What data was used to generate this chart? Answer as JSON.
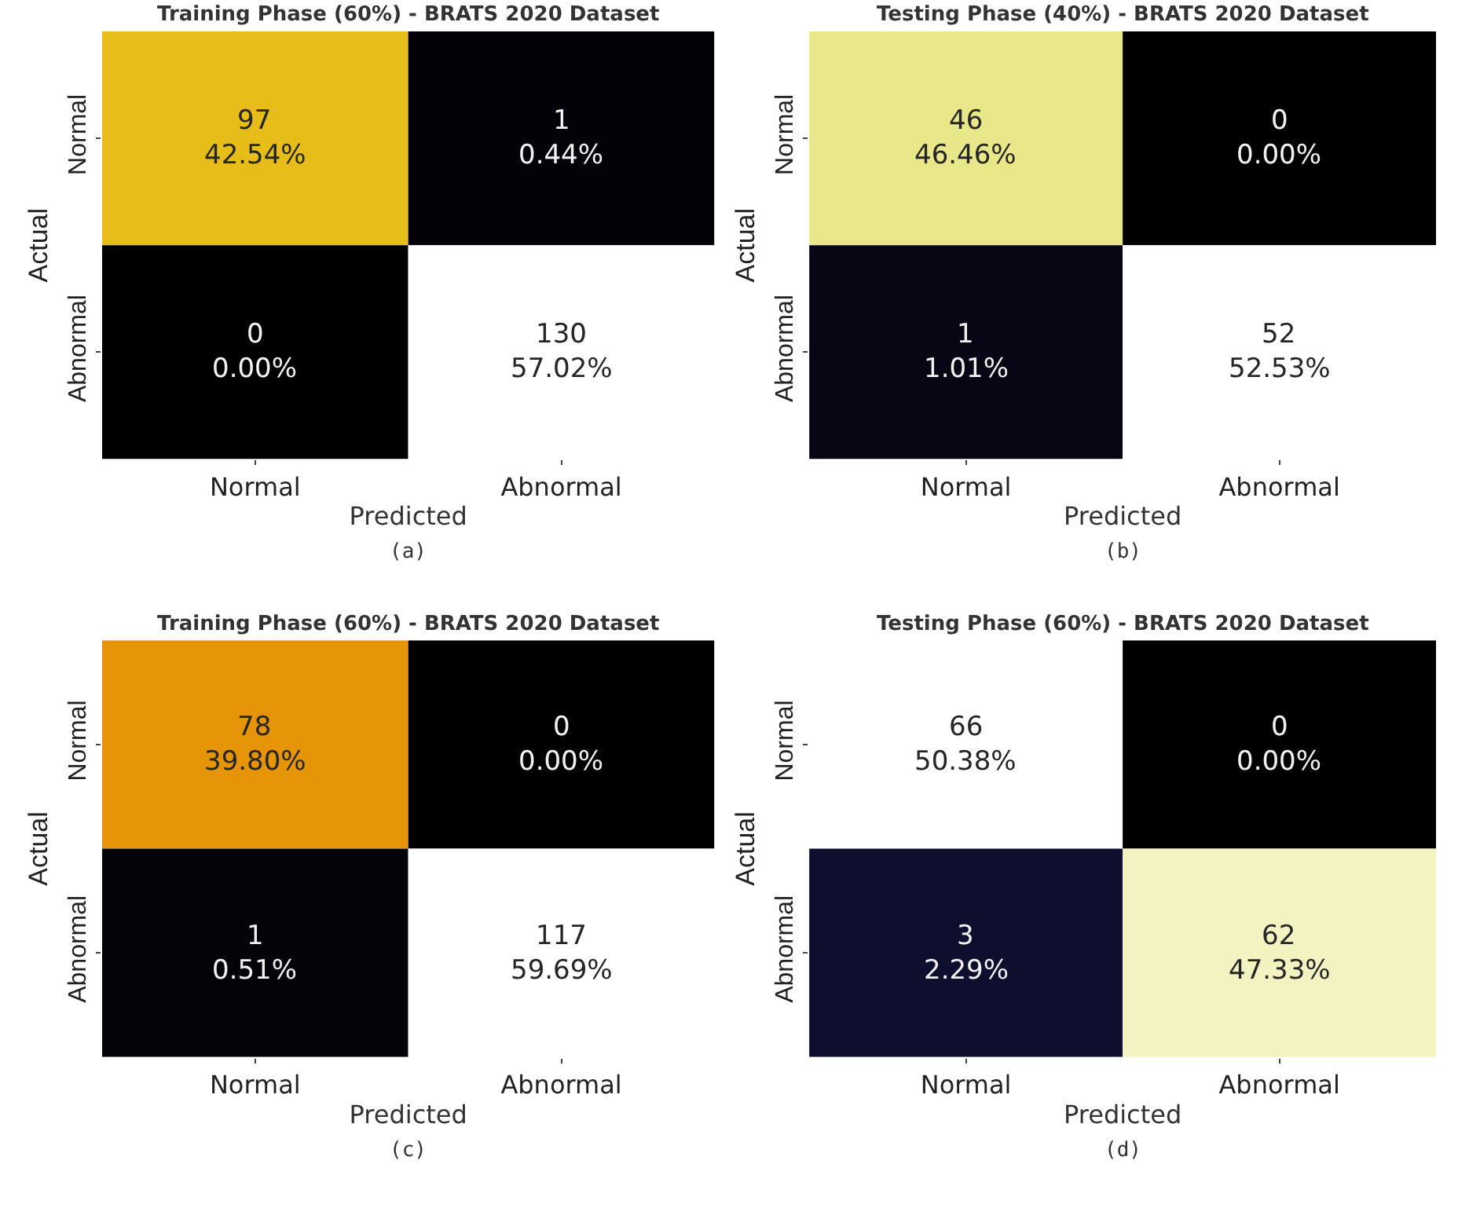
{
  "chart_data": [
    {
      "type": "heatmap",
      "title": "Training Phase (60%) - BRATS 2020 Dataset",
      "xlabel": "Predicted",
      "ylabel": "Actual",
      "categories": [
        "Normal",
        "Abnormal"
      ],
      "y_categories": [
        "Normal",
        "Abnormal"
      ],
      "cells": [
        [
          97,
          1
        ],
        [
          0,
          130
        ]
      ],
      "data_labels": true,
      "annotations": [
        "(a)",
        "42.54%",
        "0.44%",
        "0.00%",
        "57.02%"
      ]
    },
    {
      "type": "heatmap",
      "title": "Testing Phase (40%) - BRATS 2020 Dataset",
      "xlabel": "Predicted",
      "ylabel": "Actual",
      "categories": [
        "Normal",
        "Abnormal"
      ],
      "y_categories": [
        "Normal",
        "Abnormal"
      ],
      "cells": [
        [
          46,
          0
        ],
        [
          1,
          52
        ]
      ],
      "data_labels": true,
      "annotations": [
        "(b)",
        "46.46%",
        "0.00%",
        "1.01%",
        "52.53%"
      ]
    },
    {
      "type": "heatmap",
      "title": "Training Phase (60%) - BRATS 2020 Dataset",
      "xlabel": "Predicted",
      "ylabel": "Actual",
      "categories": [
        "Normal",
        "Abnormal"
      ],
      "y_categories": [
        "Normal",
        "Abnormal"
      ],
      "cells": [
        [
          78,
          0
        ],
        [
          1,
          117
        ]
      ],
      "data_labels": true,
      "annotations": [
        "(c)",
        "39.80%",
        "0.00%",
        "0.51%",
        "59.69%"
      ]
    },
    {
      "type": "heatmap",
      "title": "Testing Phase (60%) - BRATS 2020 Dataset",
      "xlabel": "Predicted",
      "ylabel": "Actual",
      "categories": [
        "Normal",
        "Abnormal"
      ],
      "y_categories": [
        "Normal",
        "Abnormal"
      ],
      "cells": [
        [
          66,
          0
        ],
        [
          3,
          62
        ]
      ],
      "data_labels": true,
      "annotations": [
        "(d)",
        "50.38%",
        "0.00%",
        "2.29%",
        "47.33%"
      ]
    }
  ]
}
